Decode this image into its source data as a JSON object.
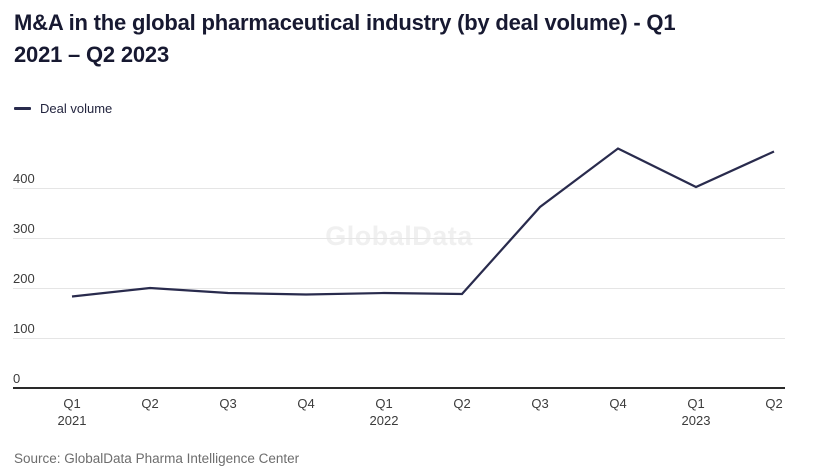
{
  "header": {
    "title_line1": "M&A in the global pharmaceutical industry (by deal volume) - Q1",
    "title_line2": "2021 – Q2 2023"
  },
  "legend": {
    "label": "Deal volume"
  },
  "watermark": "GlobalData",
  "source": "Source: GlobalData Pharma Intelligence Center",
  "colors": {
    "line": "#292b4d",
    "title_text": "#171931",
    "axis_text": "#3b3b3b",
    "gridline": "#e5e5e5",
    "axis_line": "#2a2a2a",
    "watermark_text": "#f0f0f0",
    "source_text": "#6d6d6d",
    "background": "#ffffff"
  },
  "chart_data": {
    "type": "line",
    "title": "M&A in the global pharmaceutical industry (by deal volume) - Q1 2021 – Q2 2023",
    "categories": [
      "Q1",
      "Q2",
      "Q3",
      "Q4",
      "Q1",
      "Q2",
      "Q3",
      "Q4",
      "Q1",
      "Q2"
    ],
    "year_labels": [
      {
        "index": 0,
        "label": "2021"
      },
      {
        "index": 4,
        "label": "2022"
      },
      {
        "index": 8,
        "label": "2023"
      }
    ],
    "series": [
      {
        "name": "Deal volume",
        "color": "#292b4d",
        "values": [
          183,
          200,
          190,
          187,
          190,
          188,
          362,
          479,
          402,
          473
        ]
      }
    ],
    "y_ticks": [
      0,
      100,
      200,
      300,
      400
    ],
    "ylim": [
      0,
      500
    ],
    "xlabel": "",
    "ylabel": "",
    "grid": "horizontal",
    "legend_position": "top-left"
  }
}
